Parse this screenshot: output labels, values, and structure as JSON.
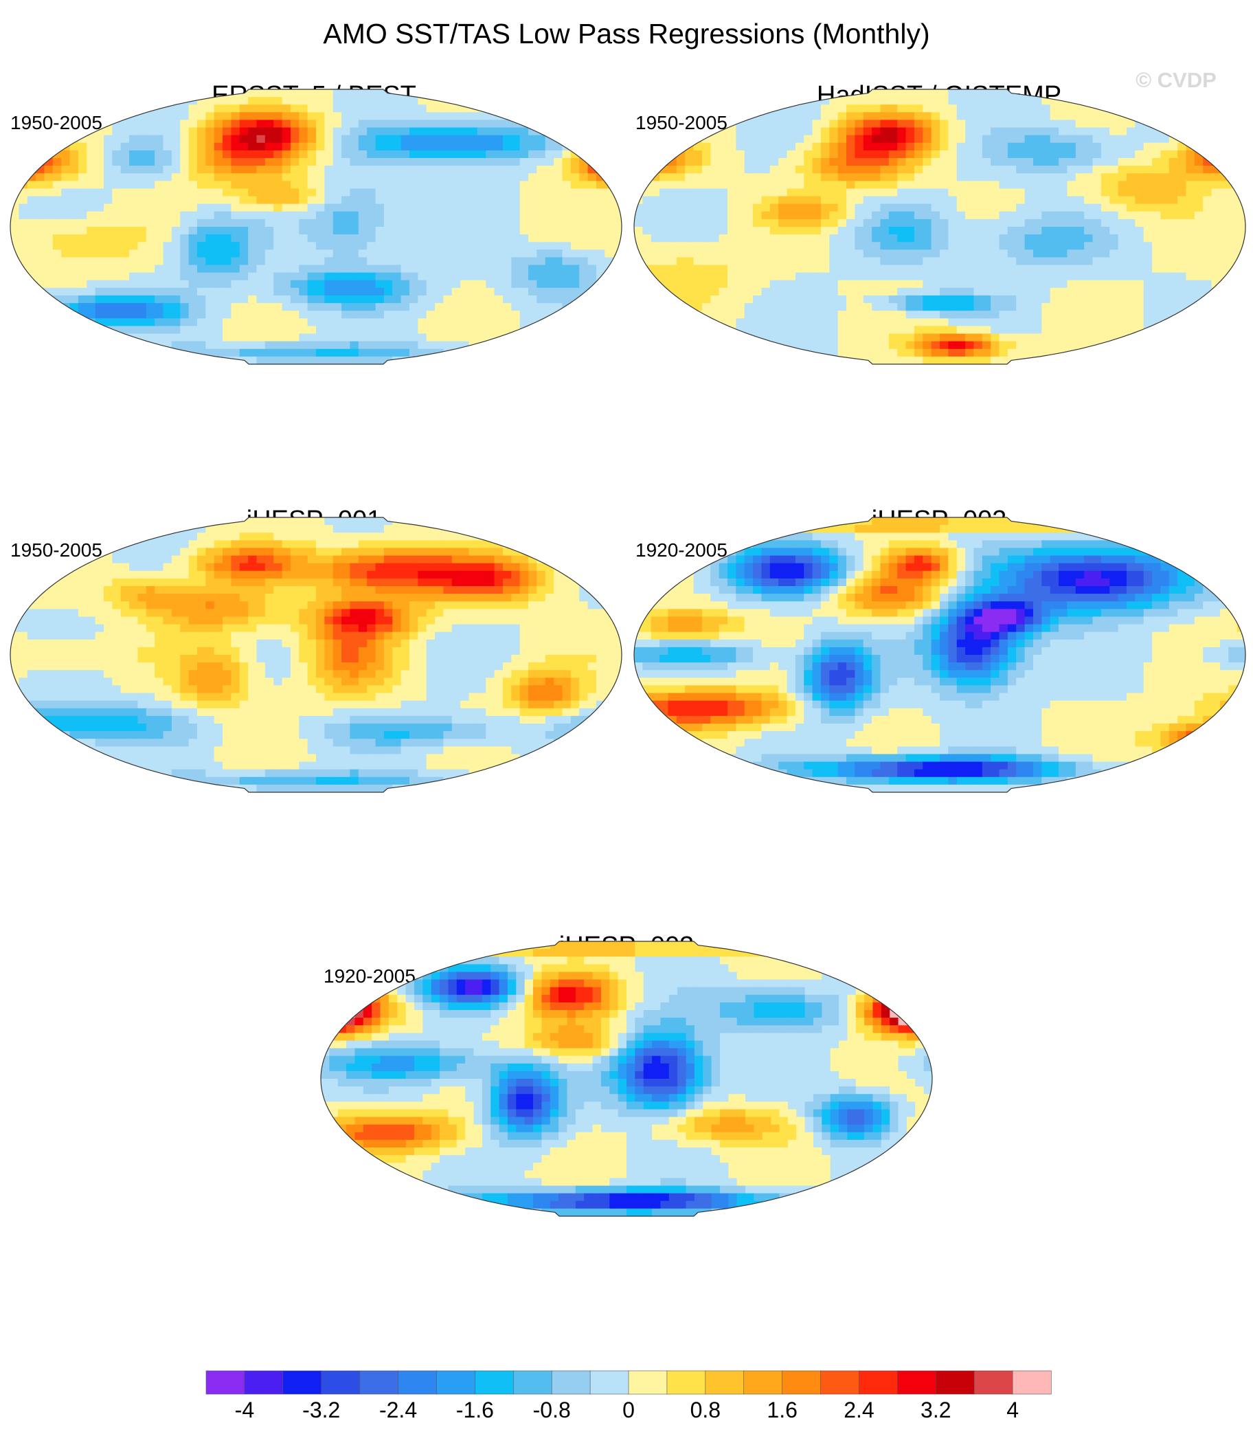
{
  "figure": {
    "title": "AMO SST/TAS Low Pass Regressions (Monthly)",
    "watermark": "© CVDP"
  },
  "chart_data": {
    "type": "heatmap",
    "description_free": true,
    "projection": "Robinson-like global map",
    "panels": [
      {
        "title": "ERSSTv5 / BEST",
        "period": "1950-2005",
        "blobs": [
          {
            "lon": -30,
            "lat": 62,
            "rx": 30,
            "ry": 14,
            "v": 2.8
          },
          {
            "lon": -45,
            "lat": 45,
            "rx": 35,
            "ry": 16,
            "v": 1.8
          },
          {
            "lon": -170,
            "lat": 42,
            "rx": 28,
            "ry": 12,
            "v": 2.2
          },
          {
            "lon": 170,
            "lat": 40,
            "rx": 24,
            "ry": 12,
            "v": 1.6
          },
          {
            "lon": -20,
            "lat": 20,
            "rx": 30,
            "ry": 10,
            "v": 1.2
          },
          {
            "lon": 60,
            "lat": 55,
            "rx": 40,
            "ry": 12,
            "v": -1.4
          },
          {
            "lon": 100,
            "lat": 55,
            "rx": 35,
            "ry": 12,
            "v": -1.6
          },
          {
            "lon": -100,
            "lat": 45,
            "rx": 22,
            "ry": 12,
            "v": -1.0
          },
          {
            "lon": -60,
            "lat": -15,
            "rx": 22,
            "ry": 20,
            "v": -1.6
          },
          {
            "lon": 20,
            "lat": 5,
            "rx": 25,
            "ry": 25,
            "v": -1.2
          },
          {
            "lon": 20,
            "lat": -40,
            "rx": 40,
            "ry": 12,
            "v": -1.8
          },
          {
            "lon": -120,
            "lat": -55,
            "rx": 40,
            "ry": 10,
            "v": -2.4
          },
          {
            "lon": 140,
            "lat": -30,
            "rx": 25,
            "ry": 15,
            "v": -1.2
          },
          {
            "lon": -140,
            "lat": -10,
            "rx": 35,
            "ry": 15,
            "v": 0.8
          },
          {
            "lon": 0,
            "lat": -82,
            "rx": 80,
            "ry": 6,
            "v": -1.2
          }
        ]
      },
      {
        "title": "HadISST / GISTEMP",
        "period": "1950-2005",
        "blobs": [
          {
            "lon": -30,
            "lat": 60,
            "rx": 28,
            "ry": 14,
            "v": 3.0
          },
          {
            "lon": -50,
            "lat": 40,
            "rx": 30,
            "ry": 14,
            "v": 1.8
          },
          {
            "lon": -170,
            "lat": 45,
            "rx": 26,
            "ry": 12,
            "v": 2.0
          },
          {
            "lon": 160,
            "lat": 45,
            "rx": 24,
            "ry": 12,
            "v": 2.0
          },
          {
            "lon": 120,
            "lat": 25,
            "rx": 30,
            "ry": 15,
            "v": 1.2
          },
          {
            "lon": 70,
            "lat": 50,
            "rx": 35,
            "ry": 14,
            "v": -1.2
          },
          {
            "lon": -20,
            "lat": -5,
            "rx": 28,
            "ry": 18,
            "v": -1.0
          },
          {
            "lon": 60,
            "lat": -10,
            "rx": 35,
            "ry": 18,
            "v": -1.0
          },
          {
            "lon": 0,
            "lat": -50,
            "rx": 30,
            "ry": 6,
            "v": -1.8
          },
          {
            "lon": 10,
            "lat": -78,
            "rx": 25,
            "ry": 8,
            "v": 3.0
          },
          {
            "lon": -150,
            "lat": -30,
            "rx": 40,
            "ry": 20,
            "v": 0.6
          },
          {
            "lon": -80,
            "lat": 10,
            "rx": 25,
            "ry": 10,
            "v": 1.4
          }
        ]
      },
      {
        "title": "iHESP_001",
        "period": "1950-2005",
        "blobs": [
          {
            "lon": 40,
            "lat": 55,
            "rx": 40,
            "ry": 15,
            "v": 2.8
          },
          {
            "lon": 100,
            "lat": 50,
            "rx": 35,
            "ry": 15,
            "v": 2.6
          },
          {
            "lon": -40,
            "lat": 60,
            "rx": 30,
            "ry": 12,
            "v": 2.2
          },
          {
            "lon": 30,
            "lat": 25,
            "rx": 30,
            "ry": 12,
            "v": 2.4
          },
          {
            "lon": -60,
            "lat": 30,
            "rx": 35,
            "ry": 15,
            "v": 1.6
          },
          {
            "lon": 20,
            "lat": 0,
            "rx": 25,
            "ry": 25,
            "v": 1.8
          },
          {
            "lon": -60,
            "lat": -15,
            "rx": 22,
            "ry": 20,
            "v": 1.6
          },
          {
            "lon": 135,
            "lat": -25,
            "rx": 22,
            "ry": 14,
            "v": 2.0
          },
          {
            "lon": -100,
            "lat": 40,
            "rx": 22,
            "ry": 12,
            "v": 1.2
          },
          {
            "lon": -140,
            "lat": -45,
            "rx": 60,
            "ry": 12,
            "v": -1.6
          },
          {
            "lon": 60,
            "lat": -50,
            "rx": 50,
            "ry": 10,
            "v": -1.2
          },
          {
            "lon": 0,
            "lat": -82,
            "rx": 80,
            "ry": 6,
            "v": -1.2
          },
          {
            "lon": -150,
            "lat": 0,
            "rx": 40,
            "ry": 10,
            "v": 0.6
          }
        ]
      },
      {
        "title": "iHESP_002",
        "period": "1920-2005",
        "blobs": [
          {
            "lon": 90,
            "lat": 50,
            "rx": 50,
            "ry": 20,
            "v": -4.0
          },
          {
            "lon": 20,
            "lat": 5,
            "rx": 25,
            "ry": 25,
            "v": -3.6
          },
          {
            "lon": -60,
            "lat": -15,
            "rx": 20,
            "ry": 22,
            "v": -3.2
          },
          {
            "lon": -90,
            "lat": 55,
            "rx": 35,
            "ry": 15,
            "v": -3.4
          },
          {
            "lon": 40,
            "lat": 25,
            "rx": 25,
            "ry": 12,
            "v": -3.2
          },
          {
            "lon": -30,
            "lat": 40,
            "rx": 30,
            "ry": 15,
            "v": 2.0
          },
          {
            "lon": -10,
            "lat": 60,
            "rx": 20,
            "ry": 10,
            "v": 2.4
          },
          {
            "lon": -140,
            "lat": -35,
            "rx": 50,
            "ry": 12,
            "v": 2.8
          },
          {
            "lon": 160,
            "lat": -55,
            "rx": 30,
            "ry": 10,
            "v": 3.0
          },
          {
            "lon": -150,
            "lat": 20,
            "rx": 30,
            "ry": 10,
            "v": 1.6
          },
          {
            "lon": 0,
            "lat": -75,
            "rx": 70,
            "ry": 8,
            "v": -3.8
          },
          {
            "lon": 0,
            "lat": 85,
            "rx": 180,
            "ry": 4,
            "v": 1.2
          },
          {
            "lon": -150,
            "lat": 0,
            "rx": 50,
            "ry": 8,
            "v": -1.2
          }
        ]
      },
      {
        "title": "iHESP_003",
        "period": "1920-2005",
        "blobs": [
          {
            "lon": -170,
            "lat": 45,
            "rx": 26,
            "ry": 14,
            "v": 4.2
          },
          {
            "lon": 165,
            "lat": 45,
            "rx": 26,
            "ry": 14,
            "v": 4.2
          },
          {
            "lon": -35,
            "lat": 55,
            "rx": 28,
            "ry": 14,
            "v": 2.8
          },
          {
            "lon": -30,
            "lat": 25,
            "rx": 30,
            "ry": 12,
            "v": 1.6
          },
          {
            "lon": 20,
            "lat": 5,
            "rx": 25,
            "ry": 25,
            "v": -3.8
          },
          {
            "lon": -60,
            "lat": -15,
            "rx": 20,
            "ry": 22,
            "v": -3.4
          },
          {
            "lon": -90,
            "lat": 60,
            "rx": 30,
            "ry": 12,
            "v": -3.6
          },
          {
            "lon": 90,
            "lat": 45,
            "rx": 40,
            "ry": 14,
            "v": -1.6
          },
          {
            "lon": 135,
            "lat": -25,
            "rx": 22,
            "ry": 14,
            "v": -2.8
          },
          {
            "lon": -140,
            "lat": -35,
            "rx": 40,
            "ry": 12,
            "v": 2.4
          },
          {
            "lon": 60,
            "lat": -30,
            "rx": 40,
            "ry": 12,
            "v": 1.4
          },
          {
            "lon": 0,
            "lat": -80,
            "rx": 80,
            "ry": 7,
            "v": -3.8
          },
          {
            "lon": 0,
            "lat": 85,
            "rx": 180,
            "ry": 4,
            "v": 1.2
          },
          {
            "lon": -130,
            "lat": 10,
            "rx": 50,
            "ry": 12,
            "v": -1.6
          }
        ]
      }
    ],
    "colorbar": {
      "levels": [
        -4.4,
        -4,
        -3.6,
        -3.2,
        -2.8,
        -2.4,
        -2,
        -1.6,
        -1.2,
        -0.8,
        -0.4,
        0,
        0.4,
        0.8,
        1.2,
        1.6,
        2,
        2.4,
        2.8,
        3.2,
        3.6,
        4,
        4.4
      ],
      "colors": [
        "#8b2cf2",
        "#4b1ff2",
        "#1020f5",
        "#2d4ee6",
        "#3c6ee8",
        "#2e86f0",
        "#2a9df4",
        "#10bff5",
        "#53bdf0",
        "#95cef0",
        "#b9e1f7",
        "#fff5a0",
        "#ffe14a",
        "#ffc32c",
        "#ffa81c",
        "#ff8a10",
        "#ff5a14",
        "#ff2a0c",
        "#f4000c",
        "#c80008",
        "#dc4648",
        "#ffb8b8"
      ],
      "tick_labels": [
        "-4",
        "-3.2",
        "-2.4",
        "-1.6",
        "-0.8",
        "0",
        "0.8",
        "1.6",
        "2.4",
        "3.2",
        "4"
      ],
      "tick_values": [
        -4,
        -3.2,
        -2.4,
        -1.6,
        -0.8,
        0,
        0.8,
        1.6,
        2.4,
        3.2,
        4
      ]
    }
  }
}
